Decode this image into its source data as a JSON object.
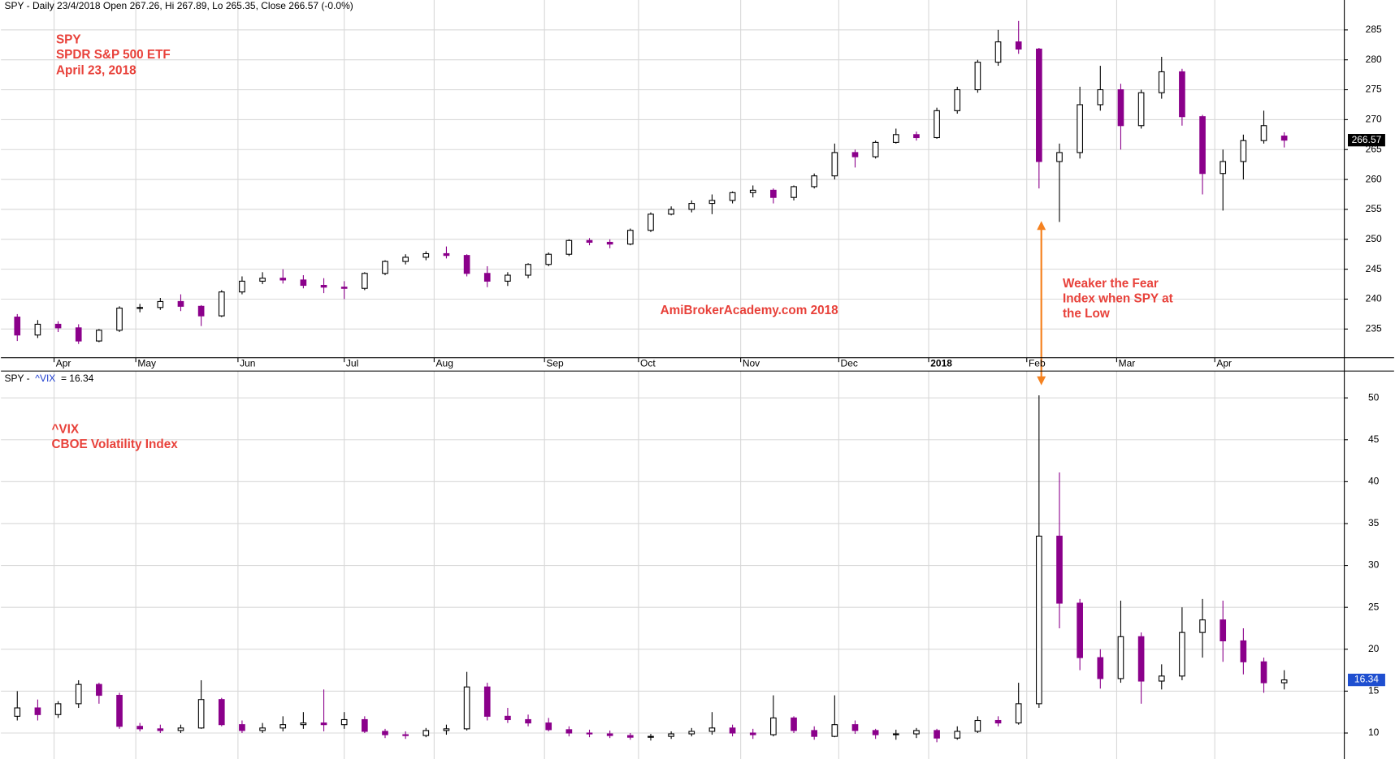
{
  "chart_data": [
    {
      "type": "candlestick",
      "header": "SPY - Daily 23/4/2018 Open 267.26, Hi 267.89, Lo 265.35, Close 266.57 (-0.0%)",
      "annotations": [
        "SPY",
        "SPDR S&P 500 ETF",
        "April 23, 2018",
        "AmiBrokerAcademy.com  2018",
        "Weaker the Fear",
        "Index when SPY at",
        "the Low"
      ],
      "up_color": "#ffffff",
      "down_color": "#8b008b",
      "xlim": [
        -1,
        327.7
      ],
      "xticks": [
        {
          "value": 12,
          "label": "Apr"
        },
        {
          "value": 32,
          "label": "May"
        },
        {
          "value": 57,
          "label": "Jun"
        },
        {
          "value": 83,
          "label": "Jul"
        },
        {
          "value": 105,
          "label": "Aug"
        },
        {
          "value": 132,
          "label": "Sep"
        },
        {
          "value": 155,
          "label": "Oct"
        },
        {
          "value": 180,
          "label": "Nov"
        },
        {
          "value": 204,
          "label": "Dec"
        },
        {
          "value": 226,
          "label": "2018"
        },
        {
          "value": 250,
          "label": "Feb"
        },
        {
          "value": 272,
          "label": "Mar"
        },
        {
          "value": 296,
          "label": "Apr"
        }
      ],
      "ylim": [
        230.2,
        290
      ],
      "yticks": [
        235,
        240,
        245,
        250,
        255,
        260,
        265,
        270,
        275,
        280,
        285
      ],
      "x": [
        3,
        8,
        13,
        18,
        23,
        28,
        33,
        38,
        43,
        48,
        53,
        58,
        63,
        68,
        73,
        78,
        83,
        88,
        93,
        98,
        103,
        108,
        113,
        118,
        123,
        128,
        133,
        138,
        143,
        148,
        153,
        158,
        163,
        168,
        173,
        178,
        183,
        188,
        193,
        198,
        203,
        208,
        213,
        218,
        223,
        228,
        233,
        238,
        243,
        248,
        253,
        258,
        263,
        268,
        273,
        278,
        283,
        288,
        293,
        298,
        303,
        308,
        313
      ],
      "open": [
        237.0,
        234.0,
        235.8,
        235.2,
        233.0,
        234.8,
        238.5,
        238.6,
        239.6,
        238.8,
        237.2,
        241.2,
        243.0,
        243.5,
        243.2,
        242.3,
        242.0,
        241.8,
        244.3,
        246.3,
        247.0,
        247.6,
        247.3,
        244.3,
        243.0,
        244.0,
        245.8,
        247.5,
        249.8,
        249.5,
        249.2,
        251.5,
        254.2,
        255.0,
        256.0,
        256.5,
        257.8,
        258.2,
        257.0,
        258.8,
        260.6,
        264.5,
        263.8,
        266.2,
        267.5,
        267.0,
        271.5,
        275.0,
        279.6,
        283.0,
        281.8,
        263.0,
        264.5,
        272.5,
        275.0,
        269.0,
        274.5,
        278.0,
        270.5,
        261.0,
        263.0,
        266.5,
        267.26
      ],
      "high": [
        237.5,
        236.5,
        236.3,
        235.8,
        235.0,
        238.8,
        239.2,
        240.2,
        240.8,
        239.0,
        241.5,
        243.8,
        244.5,
        245.0,
        244.0,
        243.5,
        243.0,
        244.5,
        246.5,
        247.5,
        248.0,
        248.8,
        247.5,
        245.5,
        244.5,
        246.0,
        247.8,
        250.0,
        250.2,
        250.0,
        251.8,
        254.5,
        255.5,
        256.5,
        257.5,
        258.0,
        259.0,
        258.5,
        259.0,
        261.0,
        266.0,
        265.0,
        266.5,
        268.5,
        268.0,
        272.0,
        275.5,
        280.0,
        285.0,
        286.5,
        282.0,
        266.0,
        275.5,
        279.0,
        276.0,
        275.0,
        280.5,
        278.5,
        270.8,
        265.0,
        267.5,
        271.5,
        267.89
      ],
      "low": [
        233.0,
        233.5,
        234.5,
        232.5,
        232.8,
        234.5,
        237.8,
        238.2,
        238.0,
        235.5,
        237.0,
        240.8,
        242.5,
        242.6,
        241.8,
        241.0,
        240.0,
        241.5,
        244.0,
        245.8,
        246.5,
        246.8,
        243.8,
        242.0,
        242.2,
        243.5,
        245.5,
        247.2,
        249.0,
        248.5,
        249.0,
        251.2,
        254.0,
        254.5,
        254.2,
        256.0,
        257.0,
        256.0,
        256.5,
        258.5,
        260.0,
        262.0,
        263.5,
        266.0,
        266.5,
        266.8,
        271.0,
        274.5,
        279.0,
        281.0,
        258.5,
        252.9,
        263.5,
        271.5,
        265.0,
        268.5,
        273.5,
        269.0,
        257.5,
        254.8,
        260.0,
        266.0,
        265.35
      ],
      "close": [
        234.0,
        235.8,
        235.2,
        233.0,
        234.8,
        238.5,
        238.6,
        239.6,
        238.8,
        237.2,
        241.2,
        243.0,
        243.5,
        243.2,
        242.3,
        242.0,
        241.8,
        244.3,
        246.3,
        247.0,
        247.6,
        247.3,
        244.3,
        243.0,
        244.0,
        245.8,
        247.5,
        249.8,
        249.5,
        249.2,
        251.5,
        254.2,
        255.0,
        256.0,
        256.5,
        257.8,
        258.2,
        257.0,
        258.8,
        260.6,
        264.5,
        263.8,
        266.2,
        267.5,
        267.0,
        271.5,
        275.0,
        279.6,
        283.0,
        281.8,
        263.0,
        264.5,
        272.5,
        275.0,
        269.0,
        274.5,
        278.0,
        270.5,
        261.0,
        263.0,
        266.5,
        269.0,
        266.57
      ]
    },
    {
      "type": "candlestick",
      "header": [
        "SPY -",
        "^VIX",
        "= 16.34"
      ],
      "annotations": [
        "^VIX",
        "CBOE Volatility Index"
      ],
      "up_color": "#ffffff",
      "down_color": "#8b008b",
      "xlim": [
        -1,
        327.7
      ],
      "ylim": [
        6.9,
        53.2
      ],
      "yticks": [
        10,
        15,
        20,
        25,
        30,
        35,
        40,
        45,
        50
      ],
      "x": [
        3,
        8,
        13,
        18,
        23,
        28,
        33,
        38,
        43,
        48,
        53,
        58,
        63,
        68,
        73,
        78,
        83,
        88,
        93,
        98,
        103,
        108,
        113,
        118,
        123,
        128,
        133,
        138,
        143,
        148,
        153,
        158,
        163,
        168,
        173,
        178,
        183,
        188,
        193,
        198,
        203,
        208,
        213,
        218,
        223,
        228,
        233,
        238,
        243,
        248,
        253,
        258,
        263,
        268,
        273,
        278,
        283,
        288,
        293,
        298,
        303,
        308,
        313
      ],
      "open": [
        12.0,
        13.0,
        12.2,
        13.5,
        15.8,
        14.5,
        10.8,
        10.5,
        10.3,
        10.6,
        14.0,
        11.0,
        10.3,
        10.6,
        11.0,
        11.2,
        11.0,
        11.6,
        10.2,
        9.8,
        9.7,
        10.3,
        10.5,
        15.5,
        12.0,
        11.6,
        11.2,
        10.4,
        10.0,
        9.9,
        9.7,
        9.5,
        9.6,
        9.9,
        10.2,
        10.6,
        10.0,
        9.8,
        11.8,
        10.3,
        9.6,
        11.0,
        10.3,
        9.8,
        9.9,
        10.3,
        9.4,
        10.2,
        11.5,
        11.2,
        13.5,
        33.5,
        25.5,
        19.0,
        16.5,
        21.5,
        16.2,
        16.8,
        22.0,
        23.5,
        21.0,
        18.5,
        16.0
      ],
      "high": [
        15.0,
        14.0,
        13.8,
        16.3,
        16.0,
        14.8,
        11.2,
        11.0,
        11.0,
        16.3,
        14.2,
        11.5,
        11.2,
        12.0,
        12.5,
        15.2,
        12.5,
        12.0,
        10.5,
        10.2,
        10.6,
        11.0,
        17.3,
        16.0,
        13.0,
        12.2,
        11.8,
        10.8,
        10.4,
        10.3,
        10.0,
        9.9,
        10.2,
        10.6,
        12.5,
        11.0,
        10.5,
        14.5,
        12.0,
        10.8,
        14.5,
        11.5,
        10.5,
        10.4,
        10.6,
        10.5,
        10.8,
        12.0,
        12.0,
        16.0,
        50.3,
        41.1,
        26.0,
        20.0,
        25.8,
        22.0,
        18.2,
        25.0,
        26.0,
        25.8,
        22.5,
        19.0,
        17.5
      ],
      "low": [
        11.5,
        11.5,
        11.8,
        13.0,
        13.5,
        10.5,
        10.2,
        10.0,
        10.0,
        10.5,
        10.8,
        10.0,
        10.0,
        10.2,
        10.5,
        10.2,
        10.5,
        10.0,
        9.4,
        9.3,
        9.5,
        9.8,
        10.3,
        11.5,
        11.2,
        10.8,
        10.2,
        9.6,
        9.5,
        9.4,
        9.2,
        9.1,
        9.3,
        9.6,
        9.8,
        9.6,
        9.3,
        9.6,
        10.0,
        9.2,
        9.5,
        9.9,
        9.3,
        9.2,
        9.4,
        8.9,
        9.2,
        10.0,
        10.8,
        11.0,
        13.0,
        22.5,
        17.5,
        15.3,
        16.0,
        13.5,
        15.2,
        16.3,
        19.0,
        18.5,
        17.0,
        14.8,
        15.2
      ],
      "close": [
        13.0,
        12.2,
        13.5,
        15.8,
        14.5,
        10.8,
        10.5,
        10.3,
        10.6,
        14.0,
        11.0,
        10.3,
        10.6,
        11.0,
        11.2,
        11.0,
        11.6,
        10.2,
        9.8,
        9.7,
        10.3,
        10.5,
        15.5,
        12.0,
        11.6,
        11.2,
        10.4,
        10.0,
        9.9,
        9.7,
        9.5,
        9.6,
        9.9,
        10.2,
        10.6,
        10.0,
        9.8,
        11.8,
        10.3,
        9.6,
        11.0,
        10.3,
        9.8,
        9.9,
        10.3,
        9.4,
        10.2,
        11.5,
        11.2,
        13.5,
        33.5,
        25.5,
        19.0,
        16.5,
        21.5,
        16.2,
        16.8,
        22.0,
        23.5,
        21.0,
        18.5,
        16.0,
        16.34
      ]
    }
  ]
}
